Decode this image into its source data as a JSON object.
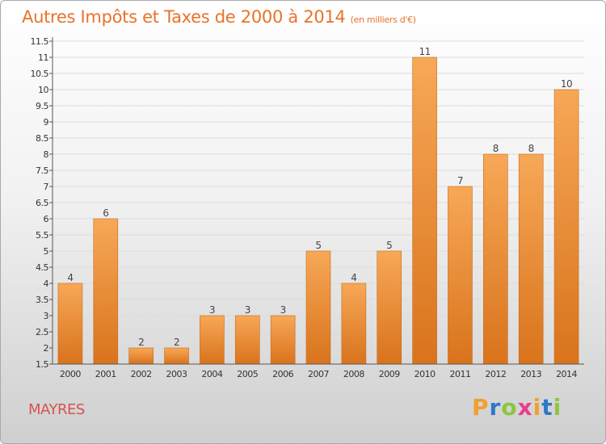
{
  "title": {
    "main": "Autres Impôts et Taxes de 2000 à 2014",
    "unit": "(en milliers d'€)"
  },
  "location": "MAYRES",
  "brand": {
    "name": "Proxiti",
    "letters": [
      "P",
      "r",
      "o",
      "x",
      "i",
      "t",
      "i"
    ],
    "colors": [
      "#f0a030",
      "#2e79c7",
      "#8cc63f",
      "#e83e8c",
      "#f0a030",
      "#2e79c7",
      "#8cc63f"
    ]
  },
  "colors": {
    "bar_top": "#f7a857",
    "bar_bottom": "#d9731c",
    "bar_border": "#c86a1a",
    "title": "#e8732a",
    "location": "#d9534f"
  },
  "chart_data": {
    "type": "bar",
    "categories": [
      "2000",
      "2001",
      "2002",
      "2003",
      "2004",
      "2005",
      "2006",
      "2007",
      "2008",
      "2009",
      "2010",
      "2011",
      "2012",
      "2013",
      "2014"
    ],
    "values": [
      4,
      6,
      2,
      2,
      3,
      3,
      3,
      5,
      4,
      5,
      11,
      7,
      8,
      8,
      10
    ],
    "data_labels": [
      "4",
      "6",
      "2",
      "2",
      "3",
      "3",
      "3",
      "5",
      "4",
      "5",
      "11",
      "7",
      "8",
      "8",
      "10"
    ],
    "yticks": [
      "1.5",
      "2",
      "2.5",
      "3",
      "3.5",
      "4",
      "4.5",
      "5",
      "5.5",
      "6",
      "6.5",
      "7",
      "7.5",
      "8",
      "8.5",
      "9",
      "9.5",
      "10",
      "10.5",
      "11",
      "11.5"
    ],
    "ylim": [
      1.5,
      11.5
    ],
    "grid": true,
    "legend": "none"
  }
}
